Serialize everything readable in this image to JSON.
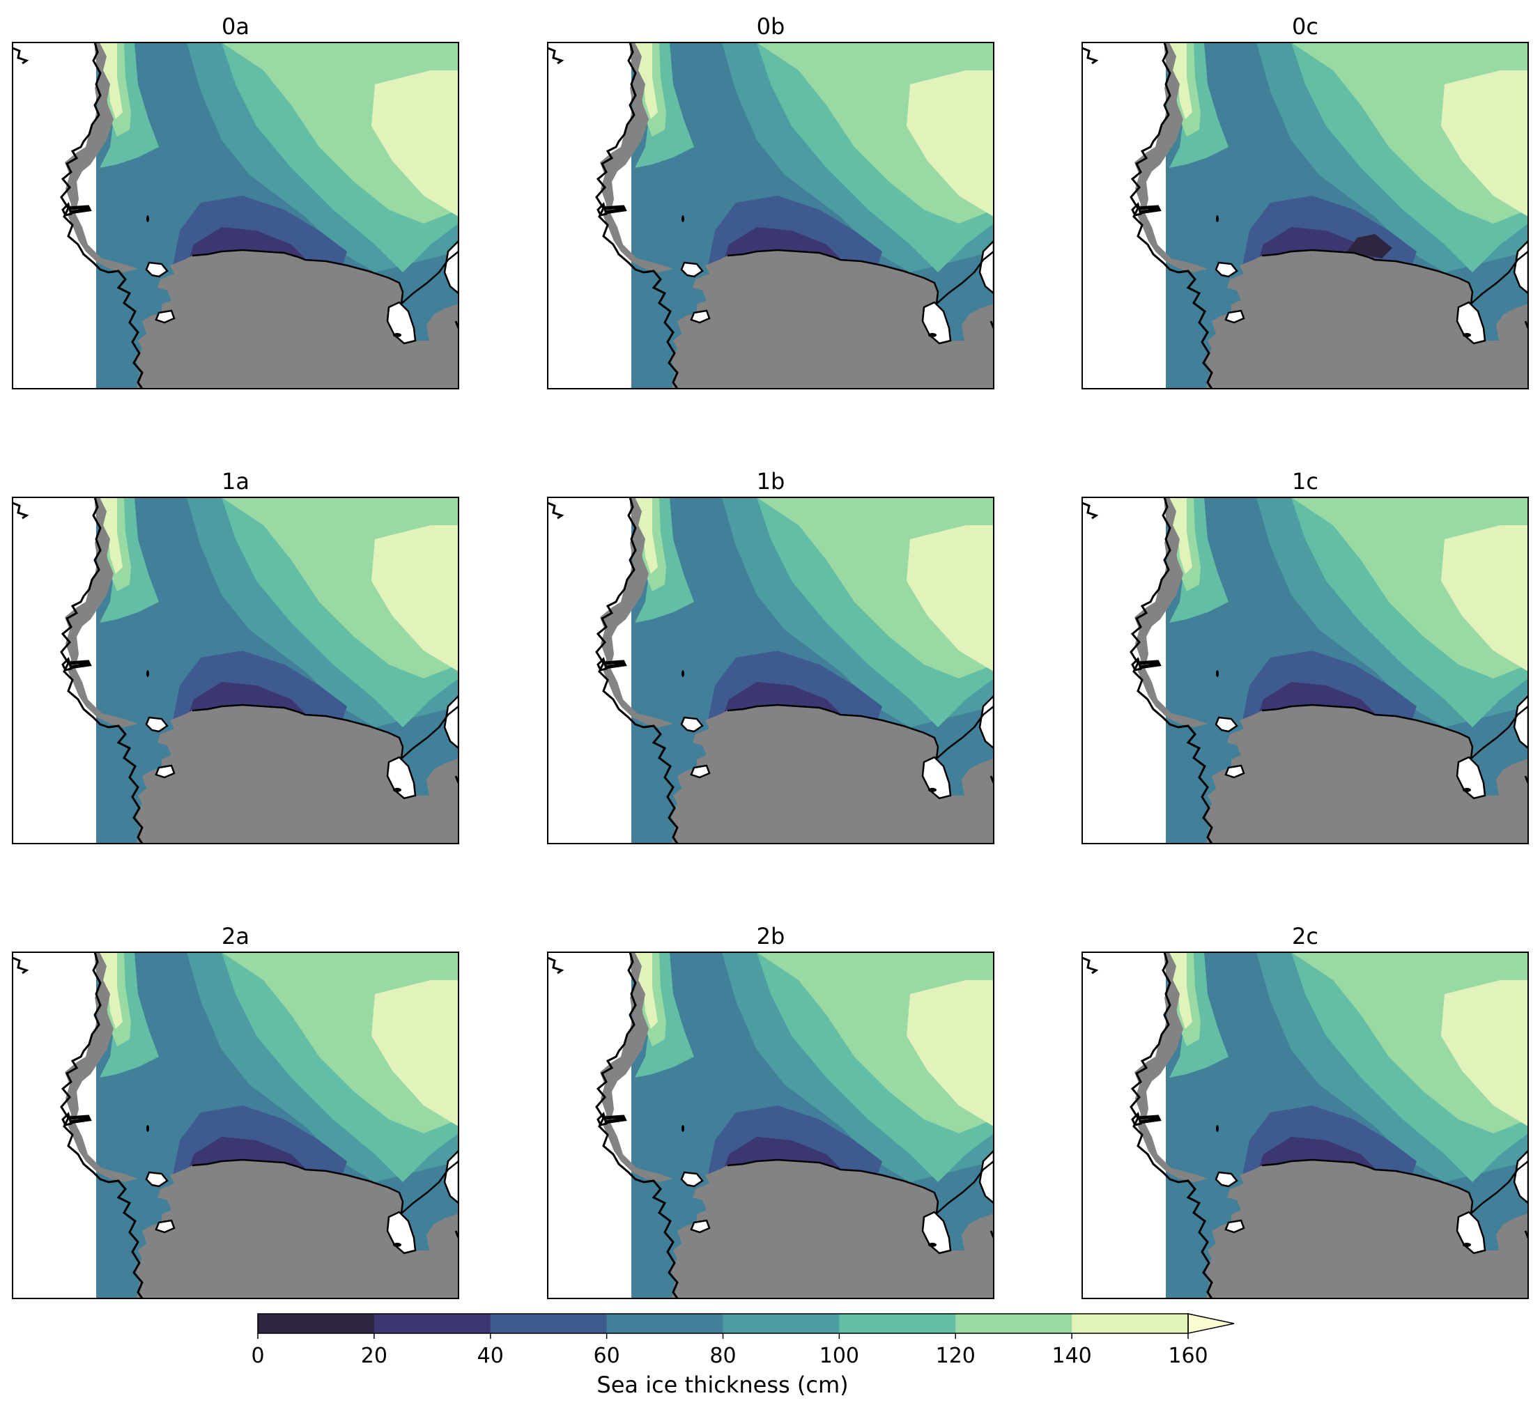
{
  "chart_data": {
    "type": "heatmap",
    "panels": [
      {
        "title": "0a",
        "row": 0,
        "col": 0,
        "peak_high": 160,
        "core_low": 20
      },
      {
        "title": "0b",
        "row": 0,
        "col": 1,
        "peak_high": 140,
        "core_low": 20
      },
      {
        "title": "0c",
        "row": 0,
        "col": 2,
        "peak_high": 140,
        "core_low": 0
      },
      {
        "title": "1a",
        "row": 1,
        "col": 0,
        "peak_high": 160,
        "core_low": 20
      },
      {
        "title": "1b",
        "row": 1,
        "col": 1,
        "peak_high": 140,
        "core_low": 20
      },
      {
        "title": "1c",
        "row": 1,
        "col": 2,
        "peak_high": 140,
        "core_low": 20
      },
      {
        "title": "2a",
        "row": 2,
        "col": 0,
        "peak_high": 160,
        "core_low": 20
      },
      {
        "title": "2b",
        "row": 2,
        "col": 1,
        "peak_high": 160,
        "core_low": 20
      },
      {
        "title": "2c",
        "row": 2,
        "col": 2,
        "peak_high": 160,
        "core_low": 20
      }
    ],
    "colorbar": {
      "label": "Sea ice thickness (cm)",
      "ticks": [
        "0",
        "20",
        "40",
        "60",
        "80",
        "100",
        "120",
        "140",
        "160"
      ],
      "levels": [
        0,
        20,
        40,
        60,
        80,
        100,
        120,
        140,
        160
      ],
      "extend": "max",
      "colors": [
        "#2e2540",
        "#3b3770",
        "#3e5a8f",
        "#42809a",
        "#4b9da1",
        "#63bea5",
        "#99d9a4",
        "#e2f2bb",
        "#fdfdd2"
      ]
    },
    "land_color": "#838383",
    "ocean_background": "#ffffff"
  }
}
